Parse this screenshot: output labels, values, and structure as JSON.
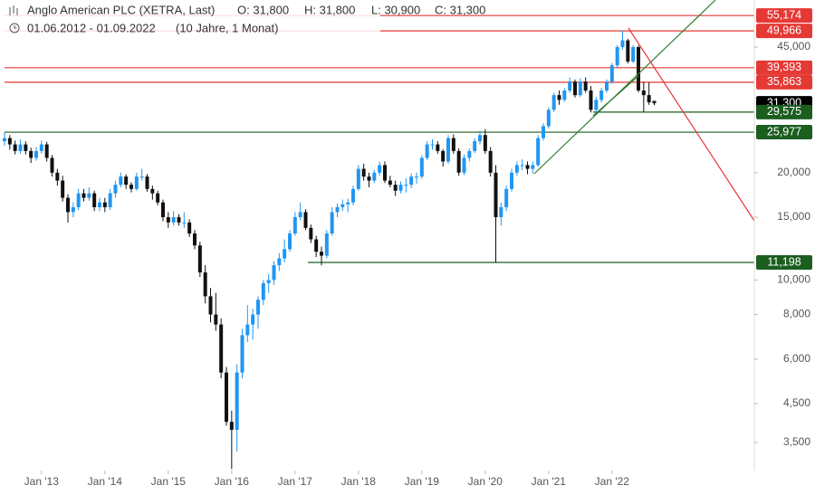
{
  "header": {
    "title": "Anglo American PLC (XETRA, Last)",
    "open": "O: 31,800",
    "high": "H: 31,800",
    "low": "L: 30,900",
    "close": "C: 31,300",
    "range": "01.06.2012 - 01.09.2022",
    "period": "(10 Jahre, 1 Monat)"
  },
  "chart_data": {
    "type": "candlestick",
    "log_scale": true,
    "up_color": "#2196f3",
    "down_color": "#111111",
    "x": [
      "2012-06",
      "2012-07",
      "2012-08",
      "2012-09",
      "2012-10",
      "2012-11",
      "2012-12",
      "2013-01",
      "2013-02",
      "2013-03",
      "2013-04",
      "2013-05",
      "2013-06",
      "2013-07",
      "2013-08",
      "2013-09",
      "2013-10",
      "2013-11",
      "2013-12",
      "2014-01",
      "2014-02",
      "2014-03",
      "2014-04",
      "2014-05",
      "2014-06",
      "2014-07",
      "2014-08",
      "2014-09",
      "2014-10",
      "2014-11",
      "2014-12",
      "2015-01",
      "2015-02",
      "2015-03",
      "2015-04",
      "2015-05",
      "2015-06",
      "2015-07",
      "2015-08",
      "2015-09",
      "2015-10",
      "2015-11",
      "2015-12",
      "2016-01",
      "2016-02",
      "2016-03",
      "2016-04",
      "2016-05",
      "2016-06",
      "2016-07",
      "2016-08",
      "2016-09",
      "2016-10",
      "2016-11",
      "2016-12",
      "2017-01",
      "2017-02",
      "2017-03",
      "2017-04",
      "2017-05",
      "2017-06",
      "2017-07",
      "2017-08",
      "2017-09",
      "2017-10",
      "2017-11",
      "2017-12",
      "2018-01",
      "2018-02",
      "2018-03",
      "2018-04",
      "2018-05",
      "2018-06",
      "2018-07",
      "2018-08",
      "2018-09",
      "2018-10",
      "2018-11",
      "2018-12",
      "2019-01",
      "2019-02",
      "2019-03",
      "2019-04",
      "2019-05",
      "2019-06",
      "2019-07",
      "2019-08",
      "2019-09",
      "2019-10",
      "2019-11",
      "2019-12",
      "2020-01",
      "2020-02",
      "2020-03",
      "2020-04",
      "2020-05",
      "2020-06",
      "2020-07",
      "2020-08",
      "2020-09",
      "2020-10",
      "2020-11",
      "2020-12",
      "2021-01",
      "2021-02",
      "2021-03",
      "2021-04",
      "2021-05",
      "2021-06",
      "2021-07",
      "2021-08",
      "2021-09",
      "2021-10",
      "2021-11",
      "2021-12",
      "2022-01",
      "2022-02",
      "2022-03",
      "2022-04",
      "2022-05",
      "2022-06",
      "2022-07",
      "2022-08",
      "2022-09"
    ],
    "candles": [
      [
        24.5,
        26,
        23.8,
        25
      ],
      [
        25,
        25.5,
        23.2,
        24
      ],
      [
        24,
        24.6,
        22.5,
        23
      ],
      [
        23,
        24.8,
        22.6,
        24
      ],
      [
        24,
        24.5,
        22.5,
        23
      ],
      [
        23,
        23.5,
        21.3,
        22
      ],
      [
        22,
        23.6,
        21.6,
        23
      ],
      [
        23,
        24.6,
        22.6,
        24
      ],
      [
        24,
        24.4,
        21.5,
        22
      ],
      [
        22,
        22.4,
        19.5,
        20
      ],
      [
        20,
        20.5,
        18.4,
        19
      ],
      [
        19,
        19.6,
        16.6,
        17
      ],
      [
        17,
        17.4,
        14.5,
        15.5
      ],
      [
        15.5,
        16.5,
        15,
        16
      ],
      [
        16,
        18,
        15.7,
        17.5
      ],
      [
        17.5,
        18,
        16.6,
        17
      ],
      [
        17,
        18.2,
        16.7,
        17.5
      ],
      [
        17.5,
        17.8,
        15.6,
        16
      ],
      [
        16,
        17,
        15.6,
        16.5
      ],
      [
        16.5,
        17,
        15.5,
        16
      ],
      [
        16,
        18,
        15.7,
        17.5
      ],
      [
        17.5,
        19,
        17,
        18.5
      ],
      [
        18.5,
        20,
        18.2,
        19.5
      ],
      [
        19.5,
        19.8,
        18,
        18.5
      ],
      [
        18.5,
        18.8,
        17.6,
        18
      ],
      [
        18,
        20,
        17.8,
        19.5
      ],
      [
        19.5,
        20.5,
        19,
        19.5
      ],
      [
        19.5,
        19.8,
        17.7,
        18
      ],
      [
        18,
        18.4,
        16.8,
        17.5
      ],
      [
        17.5,
        17.8,
        16.2,
        16.5
      ],
      [
        16.5,
        16.8,
        14.6,
        15
      ],
      [
        15,
        15.5,
        14,
        14.5
      ],
      [
        14.5,
        15.6,
        14.2,
        15
      ],
      [
        15,
        15.3,
        14.2,
        14.5
      ],
      [
        14.5,
        15.5,
        14,
        14.5
      ],
      [
        14.5,
        14.8,
        13.2,
        13.5
      ],
      [
        13.5,
        13.8,
        12.2,
        12.5
      ],
      [
        12.5,
        12.8,
        10.2,
        10.5
      ],
      [
        10.5,
        11,
        8.6,
        9
      ],
      [
        9,
        9.5,
        7.6,
        8
      ],
      [
        8,
        9.2,
        7.2,
        7.5
      ],
      [
        7.5,
        7.8,
        5.3,
        5.5
      ],
      [
        5.5,
        5.7,
        3.9,
        4
      ],
      [
        4,
        4.3,
        2.95,
        3.8
      ],
      [
        3.8,
        5.8,
        3.3,
        5.5
      ],
      [
        5.5,
        7.3,
        5.3,
        7
      ],
      [
        7,
        8.5,
        6.7,
        7.5
      ],
      [
        7.5,
        8.3,
        6.8,
        8
      ],
      [
        8,
        9,
        7.3,
        8.8
      ],
      [
        8.8,
        10,
        8.5,
        9.8
      ],
      [
        9.8,
        10.4,
        9.2,
        10
      ],
      [
        10,
        11.3,
        9.7,
        11
      ],
      [
        11,
        11.9,
        10.6,
        11.5
      ],
      [
        11.5,
        13,
        11.2,
        12.2
      ],
      [
        12.2,
        13.8,
        12,
        13.5
      ],
      [
        13.5,
        15.5,
        13.3,
        15
      ],
      [
        15,
        16.5,
        14.7,
        15.5
      ],
      [
        15.5,
        15.8,
        13.8,
        14
      ],
      [
        14,
        14.3,
        12.7,
        13
      ],
      [
        13,
        13.3,
        11.6,
        12
      ],
      [
        12,
        12.4,
        11,
        11.7
      ],
      [
        11.7,
        13.8,
        11.5,
        13.5
      ],
      [
        13.5,
        16,
        13.3,
        15.5
      ],
      [
        15.5,
        16.4,
        15,
        16
      ],
      [
        16,
        16.8,
        15.6,
        16.3
      ],
      [
        16.3,
        16.9,
        15.5,
        16.5
      ],
      [
        16.5,
        18.4,
        16.2,
        18
      ],
      [
        18,
        21,
        17.8,
        20.5
      ],
      [
        20.5,
        21.2,
        19,
        19.5
      ],
      [
        19.5,
        20,
        18.2,
        19
      ],
      [
        19,
        20.4,
        18.7,
        20
      ],
      [
        20,
        21.5,
        19.6,
        21
      ],
      [
        21,
        21.5,
        18.7,
        19
      ],
      [
        19,
        19.6,
        18.2,
        18.5
      ],
      [
        18.5,
        19,
        17.2,
        17.8
      ],
      [
        17.8,
        18.9,
        17.5,
        18.5
      ],
      [
        18.5,
        19.3,
        17.6,
        18.5
      ],
      [
        18.5,
        19.9,
        18.1,
        19.5
      ],
      [
        19.5,
        20,
        18.6,
        19.5
      ],
      [
        19.5,
        22.4,
        19.2,
        22
      ],
      [
        22,
        24.5,
        21.7,
        24
      ],
      [
        24,
        24.8,
        23.2,
        24
      ],
      [
        24,
        24.5,
        22.6,
        23
      ],
      [
        23,
        23.3,
        20.8,
        21.5
      ],
      [
        21.5,
        25.5,
        21.2,
        25
      ],
      [
        25,
        25.6,
        22.6,
        23
      ],
      [
        23,
        23.4,
        19.6,
        20
      ],
      [
        20,
        22.5,
        19.7,
        22
      ],
      [
        22,
        23.4,
        21.5,
        23
      ],
      [
        23,
        25,
        22.7,
        24.5
      ],
      [
        24.5,
        26.2,
        24,
        25.5
      ],
      [
        25.5,
        26.5,
        22.6,
        23
      ],
      [
        23,
        23.6,
        19.5,
        20
      ],
      [
        20,
        21,
        11.2,
        15
      ],
      [
        15,
        16.5,
        14.2,
        16
      ],
      [
        16,
        18.4,
        15.6,
        18
      ],
      [
        18,
        20.5,
        17.7,
        20
      ],
      [
        20,
        21.5,
        19.6,
        21
      ],
      [
        21,
        21.8,
        20.3,
        21
      ],
      [
        21,
        21.5,
        19.8,
        20.5
      ],
      [
        20.5,
        21.5,
        19.9,
        21
      ],
      [
        21,
        25.5,
        20.8,
        25
      ],
      [
        25,
        27.5,
        24.6,
        27
      ],
      [
        27,
        30.5,
        26.6,
        30
      ],
      [
        30,
        33.5,
        29.6,
        33
      ],
      [
        33,
        34,
        31,
        32
      ],
      [
        32,
        34.5,
        31.6,
        34
      ],
      [
        34,
        37,
        33.5,
        36
      ],
      [
        36,
        36.5,
        32.5,
        33
      ],
      [
        33,
        36.8,
        32.6,
        36
      ],
      [
        36,
        37,
        33.5,
        34
      ],
      [
        34,
        35,
        29.5,
        30
      ],
      [
        30,
        32.6,
        29.6,
        32
      ],
      [
        32,
        34.6,
        31.5,
        34
      ],
      [
        34,
        36.5,
        33.5,
        36
      ],
      [
        36,
        40.6,
        35.5,
        40
      ],
      [
        40,
        45.6,
        39.5,
        45
      ],
      [
        45,
        50,
        44.3,
        47
      ],
      [
        47,
        47.5,
        40.5,
        41
      ],
      [
        41,
        45.6,
        40.6,
        45
      ],
      [
        45,
        45.5,
        33.6,
        34
      ],
      [
        34,
        36,
        29.6,
        33
      ],
      [
        33,
        35.8,
        31,
        31.5
      ],
      [
        31.8,
        31.8,
        30.9,
        31.3
      ]
    ],
    "ylim": [
      2.92,
      61.0
    ],
    "yticks": [
      {
        "value": 3.5,
        "label": "3,500"
      },
      {
        "value": 4.5,
        "label": "4,500"
      },
      {
        "value": 6,
        "label": "6,000"
      },
      {
        "value": 8,
        "label": "8,000"
      },
      {
        "value": 10,
        "label": "10,000"
      },
      {
        "value": 15,
        "label": "15,000"
      },
      {
        "value": 20,
        "label": "20,000"
      },
      {
        "value": 45,
        "label": "45,000"
      }
    ],
    "xticks": [
      {
        "value": "2013-01",
        "label": "Jan '13"
      },
      {
        "value": "2014-01",
        "label": "Jan '14"
      },
      {
        "value": "2015-01",
        "label": "Jan '15"
      },
      {
        "value": "2016-01",
        "label": "Jan '16"
      },
      {
        "value": "2017-01",
        "label": "Jan '17"
      },
      {
        "value": "2018-01",
        "label": "Jan '18"
      },
      {
        "value": "2019-01",
        "label": "Jan '19"
      },
      {
        "value": "2020-01",
        "label": "Jan '20"
      },
      {
        "value": "2021-01",
        "label": "Jan '21"
      },
      {
        "value": "2022-01",
        "label": "Jan '22"
      }
    ],
    "last_price": {
      "value": 31.3,
      "label": "31,300",
      "color": "#000000"
    },
    "levels": [
      {
        "value": 55.174,
        "label": "55,174",
        "color": "#e53935"
      },
      {
        "value": 49.966,
        "label": "49,966",
        "color": "#e53935"
      },
      {
        "value": 39.393,
        "label": "39,393",
        "color": "#e53935"
      },
      {
        "value": 35.863,
        "label": "35,863",
        "color": "#e53935"
      },
      {
        "value": 29.575,
        "label": "29,575",
        "color": "#1b5e20"
      },
      {
        "value": 25.977,
        "label": "25,977",
        "color": "#1b5e20"
      },
      {
        "value": 11.198,
        "label": "11,198",
        "color": "#1b5e20"
      }
    ]
  }
}
